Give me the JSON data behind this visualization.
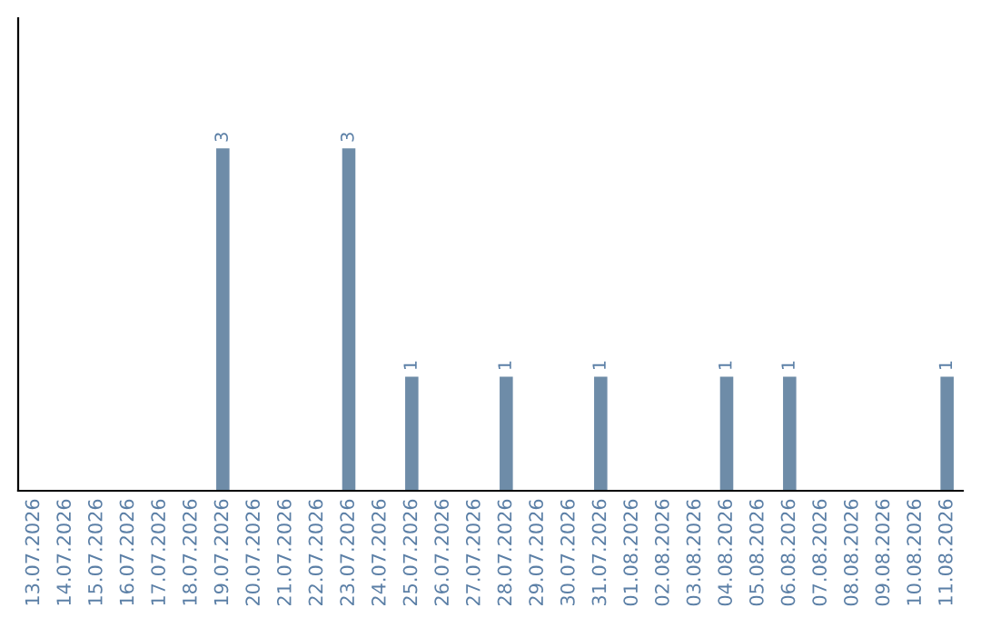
{
  "chart_data": {
    "type": "bar",
    "categories": [
      "13.07.2026",
      "14.07.2026",
      "15.07.2026",
      "16.07.2026",
      "17.07.2026",
      "18.07.2026",
      "19.07.2026",
      "20.07.2026",
      "21.07.2026",
      "22.07.2026",
      "23.07.2026",
      "24.07.2026",
      "25.07.2026",
      "26.07.2026",
      "27.07.2026",
      "28.07.2026",
      "29.07.2026",
      "30.07.2026",
      "31.07.2026",
      "01.08.2026",
      "02.08.2026",
      "03.08.2026",
      "04.08.2026",
      "05.08.2026",
      "06.08.2026",
      "07.08.2026",
      "08.08.2026",
      "09.08.2026",
      "10.08.2026",
      "11.08.2026"
    ],
    "values": [
      0,
      0,
      0,
      0,
      0,
      0,
      3,
      0,
      0,
      0,
      3,
      0,
      1,
      0,
      0,
      1,
      0,
      0,
      1,
      0,
      0,
      0,
      1,
      0,
      1,
      0,
      0,
      0,
      0,
      1
    ],
    "value_labels": [
      null,
      null,
      null,
      null,
      null,
      null,
      "3",
      null,
      null,
      null,
      "3",
      null,
      "1",
      null,
      null,
      "1",
      null,
      null,
      "1",
      null,
      null,
      null,
      "1",
      null,
      "1",
      null,
      null,
      null,
      null,
      "1"
    ],
    "color": "#6e8ca8",
    "grid": false,
    "legend": false
  }
}
